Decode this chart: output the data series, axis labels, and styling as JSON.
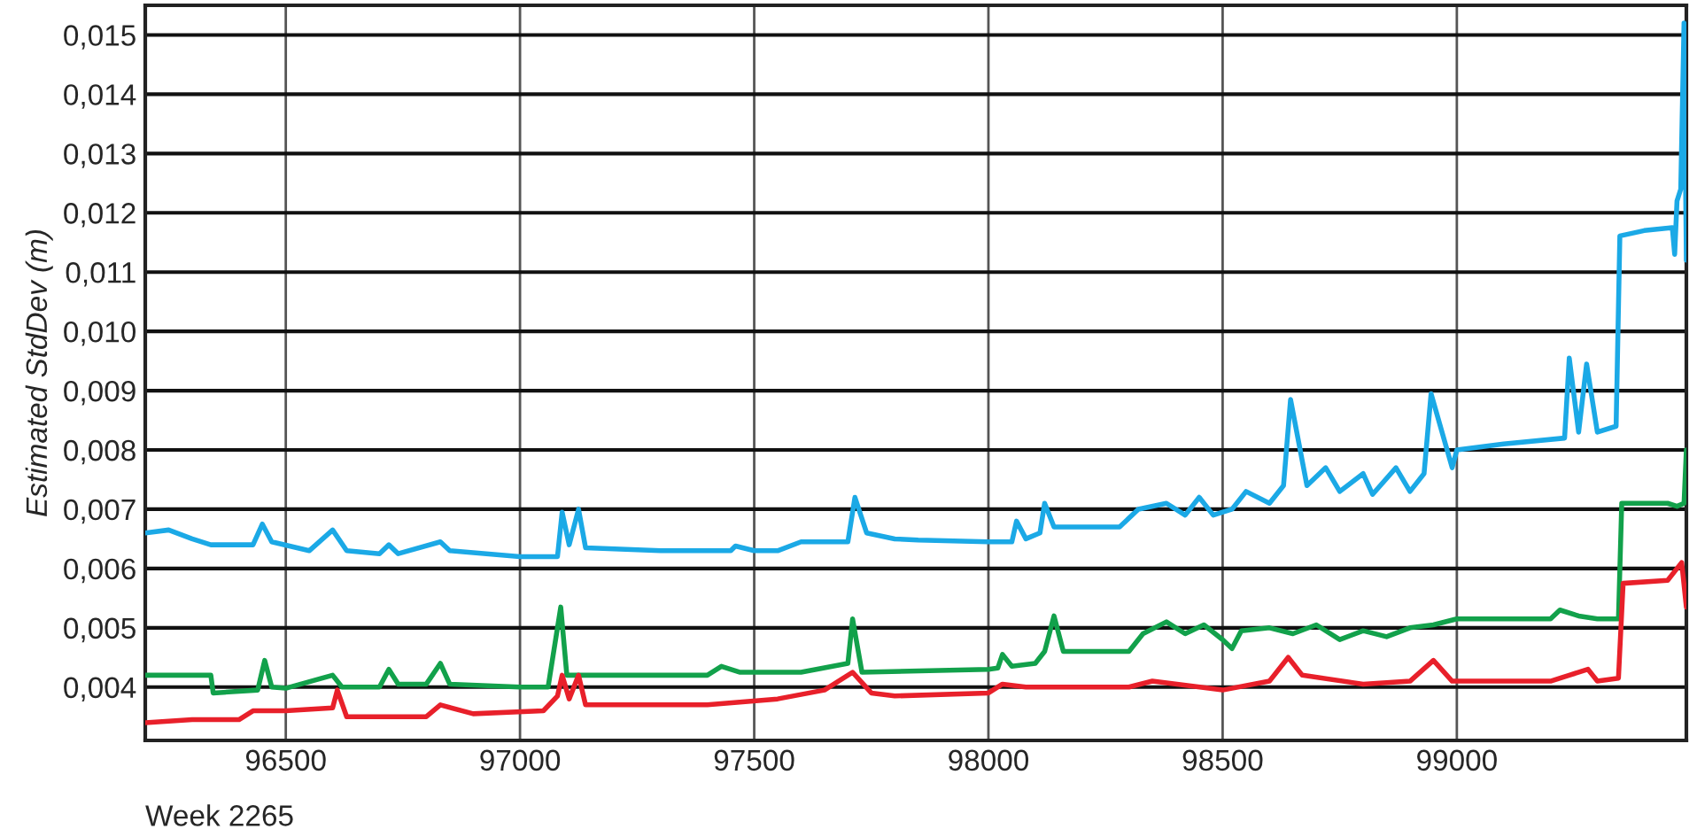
{
  "chart_data": {
    "type": "line",
    "ylabel": "Estimated StdDev (m)",
    "annotations": [
      "Week 2265"
    ],
    "xlim": [
      96200,
      99490
    ],
    "xticks": [
      96500,
      97000,
      97500,
      98000,
      98500,
      99000
    ],
    "ylim": [
      0.0031,
      0.0155
    ],
    "yticks": [
      {
        "value": 0.004,
        "label": "0,004"
      },
      {
        "value": 0.005,
        "label": "0,005"
      },
      {
        "value": 0.006,
        "label": "0,006"
      },
      {
        "value": 0.007,
        "label": "0,007"
      },
      {
        "value": 0.008,
        "label": "0,008"
      },
      {
        "value": 0.009,
        "label": "0,009"
      },
      {
        "value": 0.01,
        "label": "0,010"
      },
      {
        "value": 0.011,
        "label": "0,011"
      },
      {
        "value": 0.012,
        "label": "0,012"
      },
      {
        "value": 0.013,
        "label": "0,013"
      },
      {
        "value": 0.014,
        "label": "0,014"
      },
      {
        "value": 0.015,
        "label": "0,015"
      }
    ],
    "grid": true,
    "marker": "none",
    "line_style": "solid",
    "series": [
      {
        "color": "#1ba9e6",
        "x": [
          96200,
          96250,
          96300,
          96340,
          96430,
          96450,
          96470,
          96550,
          96600,
          96630,
          96700,
          96720,
          96740,
          96830,
          96850,
          97000,
          97080,
          97090,
          97105,
          97125,
          97140,
          97300,
          97450,
          97460,
          97500,
          97550,
          97600,
          97700,
          97715,
          97740,
          97800,
          97850,
          98000,
          98050,
          98060,
          98080,
          98110,
          98120,
          98140,
          98280,
          98320,
          98380,
          98420,
          98450,
          98480,
          98520,
          98550,
          98600,
          98630,
          98645,
          98680,
          98720,
          98750,
          98800,
          98820,
          98870,
          98900,
          98930,
          98945,
          98990,
          99000,
          99100,
          99230,
          99240,
          99260,
          99277,
          99300,
          99340,
          99348,
          99400,
          99460,
          99465,
          99470,
          99478,
          99485,
          99490
        ],
        "values": [
          0.0066,
          0.00665,
          0.0065,
          0.0064,
          0.0064,
          0.00675,
          0.00645,
          0.0063,
          0.00665,
          0.0063,
          0.00625,
          0.0064,
          0.00625,
          0.00645,
          0.0063,
          0.0062,
          0.0062,
          0.00695,
          0.0064,
          0.007,
          0.00635,
          0.0063,
          0.0063,
          0.00638,
          0.0063,
          0.0063,
          0.00645,
          0.00645,
          0.0072,
          0.0066,
          0.0065,
          0.00648,
          0.00645,
          0.00645,
          0.0068,
          0.0065,
          0.0066,
          0.0071,
          0.0067,
          0.0067,
          0.007,
          0.0071,
          0.0069,
          0.0072,
          0.0069,
          0.007,
          0.0073,
          0.0071,
          0.0074,
          0.00885,
          0.0074,
          0.0077,
          0.0073,
          0.0076,
          0.00725,
          0.0077,
          0.0073,
          0.0076,
          0.00895,
          0.0077,
          0.008,
          0.0081,
          0.0082,
          0.00955,
          0.0083,
          0.00945,
          0.0083,
          0.0084,
          0.01161,
          0.0117,
          0.01175,
          0.0113,
          0.0122,
          0.0124,
          0.0152,
          0.0112
        ]
      },
      {
        "color": "#12a14b",
        "x": [
          96200,
          96340,
          96345,
          96440,
          96455,
          96470,
          96500,
          96600,
          96620,
          96700,
          96720,
          96740,
          96800,
          96830,
          96850,
          97000,
          97060,
          97087,
          97100,
          97400,
          97430,
          97470,
          97600,
          97700,
          97710,
          97730,
          98000,
          98020,
          98030,
          98050,
          98100,
          98120,
          98140,
          98160,
          98300,
          98330,
          98380,
          98420,
          98460,
          98500,
          98520,
          98540,
          98600,
          98650,
          98700,
          98750,
          98800,
          98850,
          98900,
          98950,
          99000,
          99200,
          99220,
          99260,
          99300,
          99345,
          99352,
          99450,
          99470,
          99485,
          99490
        ],
        "values": [
          0.0042,
          0.0042,
          0.0039,
          0.00395,
          0.00445,
          0.004,
          0.00398,
          0.0042,
          0.004,
          0.004,
          0.0043,
          0.00405,
          0.00405,
          0.0044,
          0.00405,
          0.004,
          0.004,
          0.00535,
          0.0042,
          0.0042,
          0.00435,
          0.00425,
          0.00425,
          0.0044,
          0.00515,
          0.00425,
          0.0043,
          0.00432,
          0.00455,
          0.00435,
          0.0044,
          0.0046,
          0.0052,
          0.0046,
          0.0046,
          0.0049,
          0.0051,
          0.0049,
          0.00505,
          0.0048,
          0.00465,
          0.00495,
          0.005,
          0.0049,
          0.00505,
          0.0048,
          0.00495,
          0.00485,
          0.005,
          0.00505,
          0.00515,
          0.00515,
          0.0053,
          0.0052,
          0.00515,
          0.00515,
          0.0071,
          0.0071,
          0.00705,
          0.0071,
          0.008
        ]
      },
      {
        "color": "#e8202a",
        "x": [
          96200,
          96300,
          96400,
          96430,
          96500,
          96600,
          96610,
          96630,
          96800,
          96830,
          96900,
          97050,
          97080,
          97090,
          97105,
          97125,
          97140,
          97400,
          97550,
          97650,
          97710,
          97750,
          97800,
          98000,
          98030,
          98080,
          98300,
          98350,
          98500,
          98600,
          98640,
          98670,
          98800,
          98900,
          98950,
          98990,
          99200,
          99240,
          99280,
          99300,
          99345,
          99355,
          99450,
          99470,
          99480,
          99490
        ],
        "values": [
          0.0034,
          0.00345,
          0.00345,
          0.0036,
          0.0036,
          0.00365,
          0.00395,
          0.0035,
          0.0035,
          0.0037,
          0.00355,
          0.0036,
          0.00385,
          0.0042,
          0.0038,
          0.0042,
          0.0037,
          0.0037,
          0.0038,
          0.00395,
          0.00425,
          0.0039,
          0.00385,
          0.0039,
          0.00405,
          0.004,
          0.004,
          0.0041,
          0.00395,
          0.0041,
          0.0045,
          0.0042,
          0.00405,
          0.0041,
          0.00445,
          0.0041,
          0.0041,
          0.0042,
          0.0043,
          0.0041,
          0.00415,
          0.00575,
          0.0058,
          0.006,
          0.0061,
          0.00535
        ]
      }
    ]
  }
}
